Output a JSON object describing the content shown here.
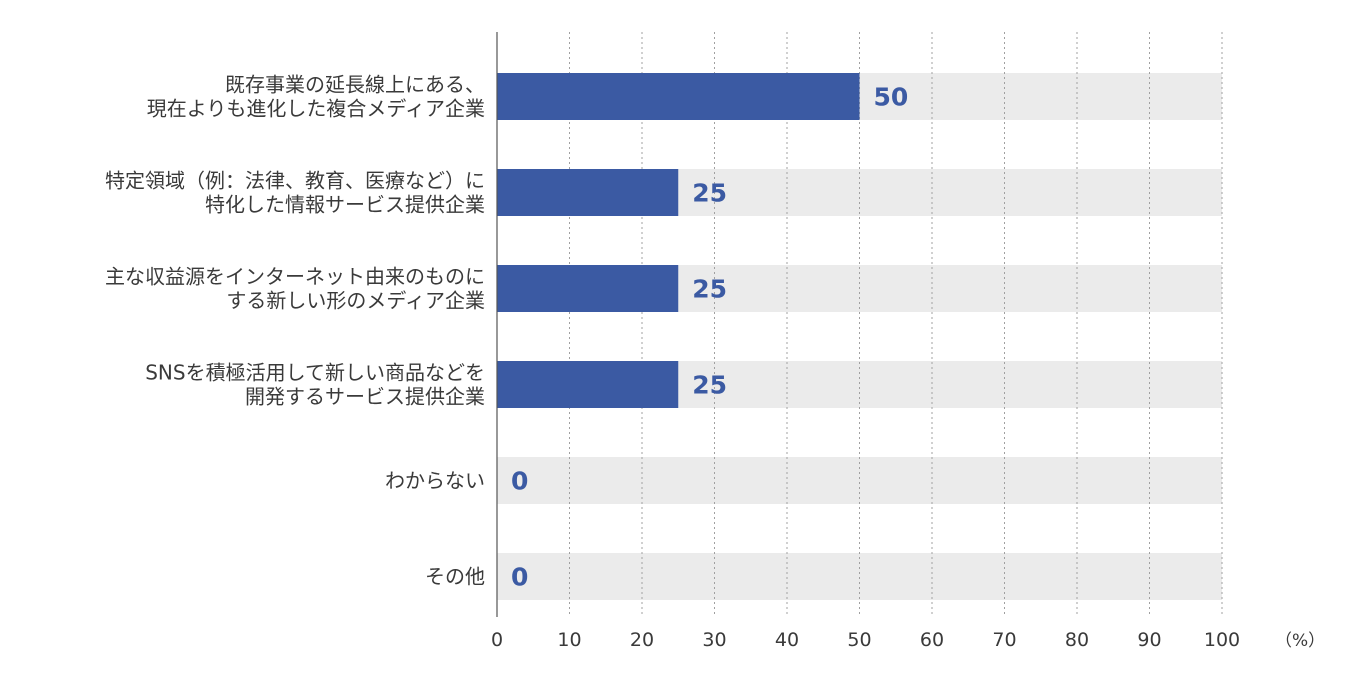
{
  "chart_data": {
    "type": "bar",
    "orientation": "horizontal",
    "categories": [
      [
        "既存事業の延長線上にある、",
        "現在よりも進化した複合メディア企業"
      ],
      [
        "特定領域（例：法律、教育、医療など）に",
        "特化した情報サービス提供企業"
      ],
      [
        "主な収益源をインターネット由来のものに",
        "する新しい形のメディア企業"
      ],
      [
        "SNSを積極活用して新しい商品などを",
        "開発するサービス提供企業"
      ],
      [
        "わからない"
      ],
      [
        "その他"
      ]
    ],
    "values": [
      50,
      25,
      25,
      25,
      0,
      0
    ],
    "value_labels": [
      "50",
      "25",
      "25",
      "25",
      "0",
      "0"
    ],
    "xlim": [
      0,
      100
    ],
    "xticks": [
      "0",
      "10",
      "20",
      "30",
      "40",
      "50",
      "60",
      "70",
      "80",
      "90",
      "100"
    ],
    "unit_label": "（%）",
    "grid": "vertical-dotted",
    "colors": {
      "bar": "#3b5aa3",
      "track": "#ebebeb",
      "value_label": "#3b5aa3",
      "grid": "#a0a0a0",
      "axis": "#555555",
      "text": "#3a3a3a"
    }
  }
}
